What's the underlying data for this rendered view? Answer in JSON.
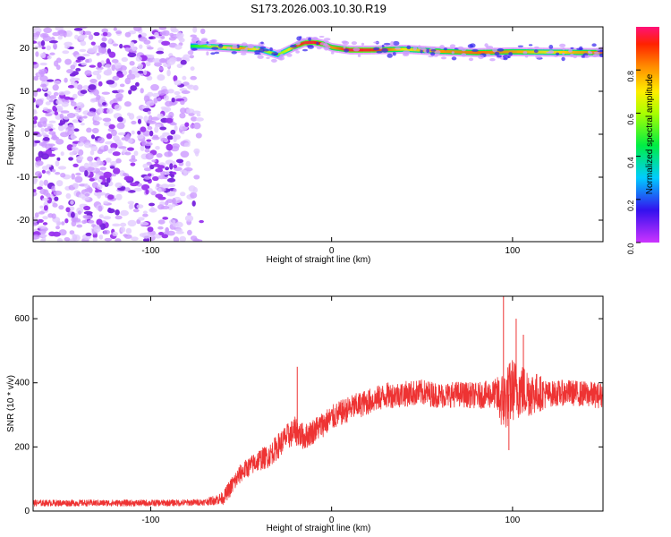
{
  "figure_title": "S173.2026.003.10.30.R19",
  "chart_data": [
    {
      "type": "heatmap",
      "title": "",
      "xlabel": "Height of straight line (km)",
      "ylabel": "Frequency (Hz)",
      "xlim": [
        -165,
        150
      ],
      "ylim": [
        -25,
        25
      ],
      "x_ticks": [
        -100,
        0,
        100
      ],
      "y_ticks": [
        -20,
        -10,
        0,
        10,
        20
      ],
      "noise_region_x": [
        -165,
        -75
      ],
      "signal_track": {
        "x": [
          -78,
          -70,
          -60,
          -50,
          -40,
          -30,
          -25,
          -20,
          -15,
          -10,
          -5,
          0,
          10,
          20,
          30,
          40,
          60,
          80,
          100,
          120,
          150
        ],
        "frequency_hz": [
          20.5,
          20.5,
          20.2,
          20.0,
          19.8,
          18.5,
          19.5,
          20.5,
          21.3,
          21.4,
          21.0,
          20.2,
          19.6,
          19.6,
          19.7,
          19.8,
          19.3,
          19.0,
          19.2,
          19.1,
          19.0
        ],
        "amplitude": [
          0.45,
          0.55,
          0.7,
          0.8,
          0.65,
          0.55,
          0.65,
          0.85,
          0.95,
          0.95,
          0.9,
          0.8,
          0.95,
          0.95,
          0.85,
          0.7,
          0.8,
          0.85,
          0.8,
          0.7,
          0.85
        ]
      },
      "colorbar": {
        "label": "Normalized spectral amplitude",
        "range": [
          0,
          1
        ],
        "ticks": [
          "0.0",
          "0.2",
          "0.4",
          "0.6",
          "0.8"
        ]
      }
    },
    {
      "type": "line",
      "title": "",
      "xlabel": "Height of straight line (km)",
      "ylabel": "SNR (10 * v/v)",
      "xlim": [
        -165,
        150
      ],
      "ylim": [
        0,
        670
      ],
      "x_ticks": [
        -100,
        0,
        100
      ],
      "y_ticks": [
        0,
        200,
        400,
        600
      ],
      "color": "#ee3333",
      "series": [
        {
          "name": "SNR",
          "x": [
            -165,
            -140,
            -120,
            -100,
            -80,
            -70,
            -60,
            -55,
            -50,
            -45,
            -40,
            -35,
            -30,
            -25,
            -20,
            -15,
            -10,
            -5,
            0,
            10,
            20,
            30,
            40,
            50,
            60,
            70,
            80,
            90,
            95,
            100,
            105,
            110,
            120,
            130,
            140,
            150
          ],
          "y": [
            25,
            25,
            25,
            25,
            26,
            28,
            40,
            80,
            120,
            140,
            160,
            170,
            200,
            230,
            250,
            230,
            250,
            270,
            290,
            320,
            340,
            360,
            365,
            370,
            360,
            365,
            360,
            365,
            340,
            380,
            375,
            370,
            365,
            370,
            365,
            360
          ],
          "noise_amplitude": [
            20,
            20,
            20,
            20,
            20,
            20,
            40,
            60,
            60,
            60,
            70,
            70,
            80,
            80,
            90,
            80,
            80,
            80,
            80,
            80,
            80,
            80,
            80,
            80,
            80,
            80,
            80,
            90,
            200,
            200,
            170,
            150,
            80,
            80,
            80,
            80
          ]
        }
      ],
      "spikes": [
        {
          "x": -19,
          "y": 450
        },
        {
          "x": 95,
          "y": 670
        },
        {
          "x": 98,
          "y": 190
        },
        {
          "x": 102,
          "y": 600
        },
        {
          "x": 106,
          "y": 550
        }
      ]
    }
  ]
}
